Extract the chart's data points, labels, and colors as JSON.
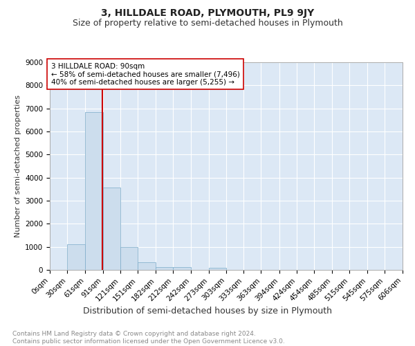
{
  "title": "3, HILLDALE ROAD, PLYMOUTH, PL9 9JY",
  "subtitle": "Size of property relative to semi-detached houses in Plymouth",
  "xlabel": "Distribution of semi-detached houses by size in Plymouth",
  "ylabel": "Number of semi-detached properties",
  "footnote": "Contains HM Land Registry data © Crown copyright and database right 2024.\nContains public sector information licensed under the Open Government Licence v3.0.",
  "bar_edges": [
    0,
    30,
    61,
    91,
    121,
    151,
    182,
    212,
    242,
    273,
    303,
    333,
    363,
    394,
    424,
    454,
    485,
    515,
    545,
    575,
    606
  ],
  "bar_heights": [
    0,
    1100,
    6850,
    3580,
    980,
    340,
    130,
    110,
    0,
    100,
    0,
    0,
    0,
    0,
    0,
    0,
    0,
    0,
    0,
    0
  ],
  "bar_color": "#ccdded",
  "bar_edgecolor": "#7aaac8",
  "property_size": 90,
  "property_line_color": "#cc0000",
  "annotation_text": "3 HILLDALE ROAD: 90sqm\n← 58% of semi-detached houses are smaller (7,496)\n40% of semi-detached houses are larger (5,255) →",
  "annotation_box_facecolor": "#ffffff",
  "annotation_box_edgecolor": "#cc0000",
  "ylim": [
    0,
    9000
  ],
  "yticks": [
    0,
    1000,
    2000,
    3000,
    4000,
    5000,
    6000,
    7000,
    8000,
    9000
  ],
  "tick_labels": [
    "0sqm",
    "30sqm",
    "61sqm",
    "91sqm",
    "121sqm",
    "151sqm",
    "182sqm",
    "212sqm",
    "242sqm",
    "273sqm",
    "303sqm",
    "333sqm",
    "363sqm",
    "394sqm",
    "424sqm",
    "454sqm",
    "485sqm",
    "515sqm",
    "545sqm",
    "575sqm",
    "606sqm"
  ],
  "bg_color": "#dce8f5",
  "grid_color": "#ffffff",
  "title_fontsize": 10,
  "subtitle_fontsize": 9,
  "xlabel_fontsize": 9,
  "ylabel_fontsize": 8,
  "tick_fontsize": 7.5,
  "annotation_fontsize": 7.5,
  "footnote_fontsize": 6.5
}
